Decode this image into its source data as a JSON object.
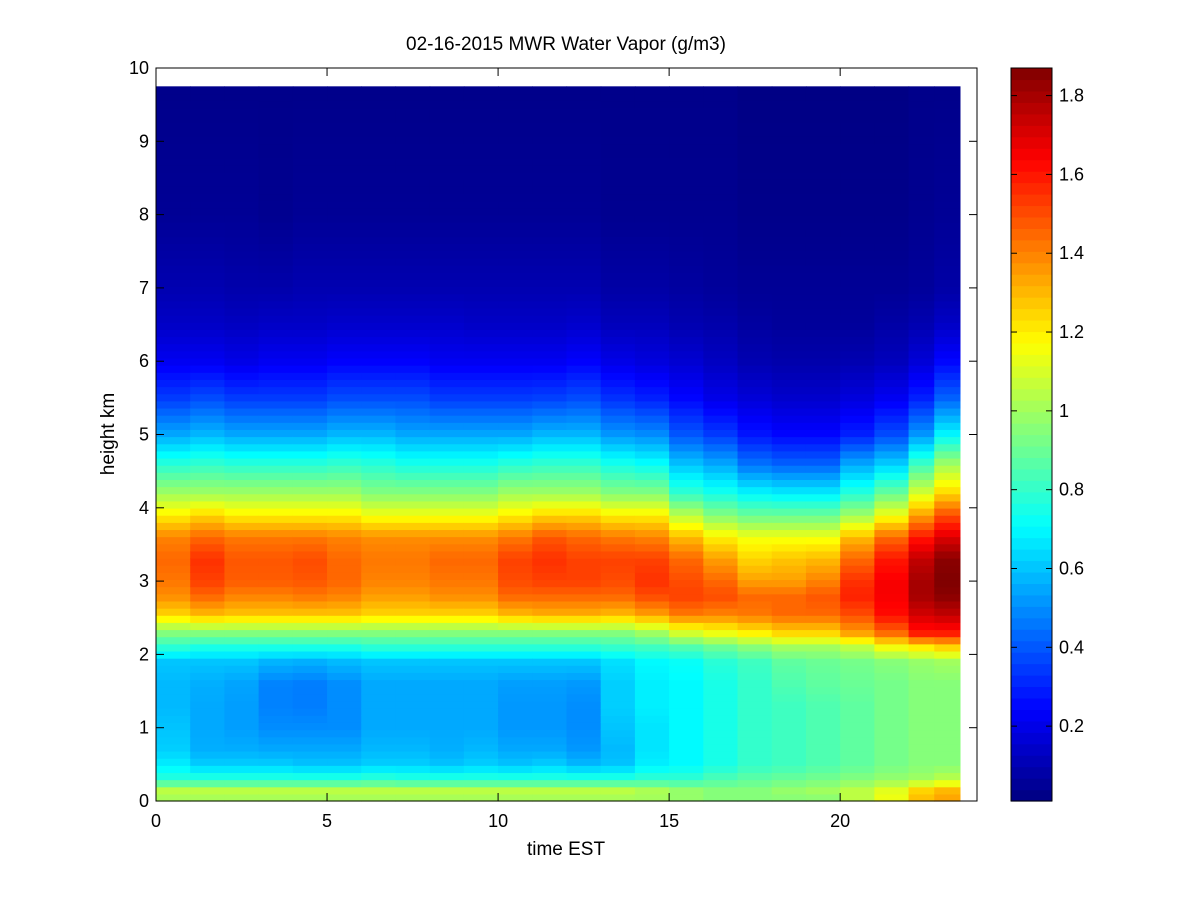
{
  "chart_data": {
    "type": "heatmap",
    "title": "02-16-2015 MWR Water Vapor (g/m3)",
    "xlabel": "time EST",
    "ylabel": "height km",
    "xlim": [
      0,
      24
    ],
    "ylim": [
      0,
      10
    ],
    "x_ticks": [
      "0",
      "5",
      "10",
      "15",
      "20"
    ],
    "y_ticks": [
      "0",
      "1",
      "2",
      "3",
      "4",
      "5",
      "6",
      "7",
      "8",
      "9",
      "10"
    ],
    "colormap": "jet",
    "colorbar": {
      "clim": [
        0.01,
        1.87
      ],
      "ticks": [
        "0.2",
        "0.4",
        "0.6",
        "0.8",
        "1",
        "1.2",
        "1.4",
        "1.6",
        "1.8"
      ]
    },
    "data_extent": {
      "x": [
        0,
        23.5
      ],
      "y": [
        0,
        9.75
      ]
    },
    "x_bin_centers": [
      0.5,
      1.5,
      2.5,
      3.5,
      4.5,
      5.5,
      6.5,
      7.5,
      8.5,
      9.5,
      10.5,
      11.5,
      12.5,
      13.5,
      14.5,
      15.5,
      16.5,
      17.5,
      18.5,
      19.5,
      20.5,
      21.5,
      22.5,
      23.0
    ],
    "profile_heights_km": [
      0.0,
      0.15,
      0.3,
      0.5,
      0.7,
      1.0,
      1.3,
      1.6,
      1.9,
      2.1,
      2.3,
      2.55,
      2.8,
      3.0,
      3.3,
      3.6,
      3.9,
      4.2,
      4.6,
      5.0,
      5.5,
      6.0,
      6.5,
      7.0,
      8.0,
      9.75
    ],
    "profiles": [
      {
        "time": 0.5,
        "values": [
          1.0,
          1.05,
          0.78,
          0.68,
          0.62,
          0.6,
          0.58,
          0.58,
          0.6,
          0.78,
          0.95,
          1.25,
          1.38,
          1.42,
          1.45,
          1.4,
          1.2,
          1.0,
          0.78,
          0.55,
          0.35,
          0.22,
          0.14,
          0.1,
          0.05,
          0.03
        ]
      },
      {
        "time": 1.5,
        "values": [
          1.0,
          1.05,
          0.78,
          0.62,
          0.56,
          0.55,
          0.55,
          0.56,
          0.6,
          0.75,
          0.95,
          1.3,
          1.45,
          1.52,
          1.55,
          1.45,
          1.25,
          1.0,
          0.8,
          0.58,
          0.38,
          0.22,
          0.14,
          0.1,
          0.05,
          0.03
        ]
      },
      {
        "time": 2.5,
        "values": [
          1.0,
          1.05,
          0.78,
          0.62,
          0.56,
          0.53,
          0.53,
          0.54,
          0.6,
          0.75,
          0.95,
          1.28,
          1.4,
          1.47,
          1.48,
          1.42,
          1.2,
          1.0,
          0.78,
          0.55,
          0.35,
          0.2,
          0.13,
          0.09,
          0.05,
          0.03
        ]
      },
      {
        "time": 3.5,
        "values": [
          1.0,
          1.05,
          0.78,
          0.62,
          0.55,
          0.5,
          0.48,
          0.48,
          0.57,
          0.75,
          0.95,
          1.28,
          1.4,
          1.47,
          1.48,
          1.42,
          1.2,
          1.0,
          0.78,
          0.55,
          0.35,
          0.22,
          0.14,
          0.09,
          0.04,
          0.03
        ]
      },
      {
        "time": 4.5,
        "values": [
          1.0,
          1.05,
          0.78,
          0.6,
          0.55,
          0.5,
          0.47,
          0.47,
          0.56,
          0.75,
          0.95,
          1.28,
          1.42,
          1.48,
          1.5,
          1.42,
          1.2,
          1.0,
          0.78,
          0.55,
          0.35,
          0.22,
          0.14,
          0.1,
          0.05,
          0.03
        ]
      },
      {
        "time": 5.5,
        "values": [
          1.0,
          1.05,
          0.78,
          0.6,
          0.55,
          0.5,
          0.5,
          0.5,
          0.58,
          0.75,
          0.95,
          1.28,
          1.4,
          1.45,
          1.45,
          1.4,
          1.2,
          1.0,
          0.8,
          0.58,
          0.38,
          0.24,
          0.15,
          0.1,
          0.05,
          0.03
        ]
      },
      {
        "time": 6.5,
        "values": [
          1.0,
          1.05,
          0.8,
          0.62,
          0.58,
          0.55,
          0.55,
          0.55,
          0.6,
          0.78,
          0.95,
          1.25,
          1.35,
          1.4,
          1.42,
          1.38,
          1.15,
          0.95,
          0.78,
          0.58,
          0.38,
          0.24,
          0.15,
          0.1,
          0.05,
          0.03
        ]
      },
      {
        "time": 7.5,
        "values": [
          1.0,
          1.05,
          0.78,
          0.62,
          0.58,
          0.55,
          0.55,
          0.55,
          0.6,
          0.78,
          0.95,
          1.25,
          1.35,
          1.4,
          1.42,
          1.38,
          1.15,
          0.95,
          0.75,
          0.55,
          0.38,
          0.24,
          0.15,
          0.1,
          0.05,
          0.03
        ]
      },
      {
        "time": 8.5,
        "values": [
          1.0,
          1.05,
          0.78,
          0.6,
          0.56,
          0.55,
          0.55,
          0.55,
          0.6,
          0.78,
          0.95,
          1.25,
          1.38,
          1.42,
          1.45,
          1.38,
          1.15,
          0.95,
          0.75,
          0.55,
          0.35,
          0.22,
          0.15,
          0.1,
          0.05,
          0.03
        ]
      },
      {
        "time": 9.5,
        "values": [
          1.0,
          1.05,
          0.78,
          0.62,
          0.58,
          0.55,
          0.55,
          0.55,
          0.6,
          0.78,
          0.95,
          1.25,
          1.38,
          1.42,
          1.45,
          1.38,
          1.15,
          0.95,
          0.75,
          0.55,
          0.35,
          0.22,
          0.14,
          0.1,
          0.05,
          0.03
        ]
      },
      {
        "time": 10.5,
        "values": [
          1.0,
          1.05,
          0.78,
          0.6,
          0.55,
          0.52,
          0.52,
          0.53,
          0.6,
          0.78,
          0.95,
          1.3,
          1.45,
          1.5,
          1.52,
          1.42,
          1.2,
          1.0,
          0.78,
          0.55,
          0.35,
          0.22,
          0.14,
          0.1,
          0.05,
          0.03
        ]
      },
      {
        "time": 11.5,
        "values": [
          1.0,
          1.05,
          0.78,
          0.62,
          0.55,
          0.52,
          0.52,
          0.53,
          0.6,
          0.78,
          0.95,
          1.32,
          1.45,
          1.52,
          1.55,
          1.48,
          1.25,
          1.0,
          0.8,
          0.58,
          0.36,
          0.22,
          0.14,
          0.1,
          0.05,
          0.03
        ]
      },
      {
        "time": 12.5,
        "values": [
          1.0,
          1.05,
          0.78,
          0.58,
          0.52,
          0.5,
          0.5,
          0.52,
          0.6,
          0.78,
          0.95,
          1.32,
          1.45,
          1.52,
          1.52,
          1.45,
          1.25,
          1.0,
          0.8,
          0.58,
          0.38,
          0.24,
          0.15,
          0.1,
          0.05,
          0.03
        ]
      },
      {
        "time": 13.5,
        "values": [
          1.0,
          1.05,
          0.78,
          0.6,
          0.58,
          0.6,
          0.62,
          0.62,
          0.65,
          0.8,
          0.95,
          1.3,
          1.45,
          1.5,
          1.52,
          1.42,
          1.2,
          0.95,
          0.75,
          0.52,
          0.33,
          0.2,
          0.12,
          0.08,
          0.04,
          0.03
        ]
      },
      {
        "time": 14.5,
        "values": [
          1.0,
          1.02,
          0.8,
          0.68,
          0.66,
          0.66,
          0.68,
          0.68,
          0.7,
          0.82,
          1.0,
          1.35,
          1.5,
          1.55,
          1.52,
          1.4,
          1.2,
          0.95,
          0.72,
          0.5,
          0.3,
          0.18,
          0.12,
          0.08,
          0.04,
          0.03
        ]
      },
      {
        "time": 15.5,
        "values": [
          0.98,
          0.98,
          0.8,
          0.7,
          0.7,
          0.7,
          0.7,
          0.7,
          0.72,
          0.85,
          1.1,
          1.42,
          1.52,
          1.5,
          1.45,
          1.3,
          1.05,
          0.8,
          0.6,
          0.4,
          0.25,
          0.16,
          0.1,
          0.07,
          0.04,
          0.03
        ]
      },
      {
        "time": 16.5,
        "values": [
          0.95,
          0.95,
          0.85,
          0.75,
          0.75,
          0.75,
          0.75,
          0.75,
          0.78,
          0.9,
          1.15,
          1.4,
          1.5,
          1.45,
          1.35,
          1.2,
          0.95,
          0.75,
          0.55,
          0.35,
          0.2,
          0.13,
          0.09,
          0.06,
          0.04,
          0.03
        ]
      },
      {
        "time": 17.5,
        "values": [
          0.95,
          0.95,
          0.88,
          0.8,
          0.8,
          0.8,
          0.8,
          0.8,
          0.82,
          0.95,
          1.2,
          1.42,
          1.45,
          1.35,
          1.25,
          1.15,
          0.9,
          0.7,
          0.45,
          0.28,
          0.17,
          0.1,
          0.07,
          0.05,
          0.03,
          0.02
        ]
      },
      {
        "time": 18.5,
        "values": [
          0.95,
          0.98,
          0.9,
          0.82,
          0.82,
          0.82,
          0.82,
          0.85,
          0.88,
          1.0,
          1.25,
          1.45,
          1.45,
          1.35,
          1.28,
          1.15,
          0.9,
          0.68,
          0.42,
          0.25,
          0.15,
          0.09,
          0.06,
          0.05,
          0.03,
          0.02
        ]
      },
      {
        "time": 19.5,
        "values": [
          0.95,
          1.0,
          0.92,
          0.85,
          0.85,
          0.85,
          0.85,
          0.88,
          0.9,
          1.0,
          1.25,
          1.45,
          1.48,
          1.4,
          1.3,
          1.15,
          0.9,
          0.68,
          0.42,
          0.25,
          0.15,
          0.09,
          0.06,
          0.05,
          0.03,
          0.02
        ]
      },
      {
        "time": 20.5,
        "values": [
          1.05,
          1.05,
          0.95,
          0.88,
          0.88,
          0.88,
          0.88,
          0.9,
          0.92,
          1.05,
          1.35,
          1.5,
          1.58,
          1.55,
          1.45,
          1.3,
          1.0,
          0.78,
          0.55,
          0.3,
          0.18,
          0.1,
          0.06,
          0.05,
          0.03,
          0.02
        ]
      },
      {
        "time": 21.5,
        "values": [
          1.15,
          1.12,
          0.98,
          0.92,
          0.92,
          0.92,
          0.92,
          0.92,
          0.95,
          1.15,
          1.45,
          1.62,
          1.65,
          1.65,
          1.6,
          1.45,
          1.15,
          0.9,
          0.62,
          0.38,
          0.22,
          0.12,
          0.08,
          0.05,
          0.03,
          0.02
        ]
      },
      {
        "time": 22.5,
        "values": [
          1.3,
          1.25,
          1.0,
          0.95,
          0.95,
          0.95,
          0.95,
          0.95,
          0.98,
          1.2,
          1.6,
          1.72,
          1.8,
          1.8,
          1.75,
          1.6,
          1.35,
          1.1,
          0.82,
          0.52,
          0.3,
          0.17,
          0.1,
          0.06,
          0.04,
          0.03
        ]
      },
      {
        "time": 23.0,
        "values": [
          1.35,
          1.3,
          1.05,
          0.95,
          0.95,
          0.95,
          0.95,
          0.95,
          1.0,
          1.25,
          1.6,
          1.75,
          1.85,
          1.87,
          1.85,
          1.7,
          1.5,
          1.25,
          1.0,
          0.7,
          0.42,
          0.25,
          0.14,
          0.08,
          0.05,
          0.03
        ]
      }
    ]
  }
}
